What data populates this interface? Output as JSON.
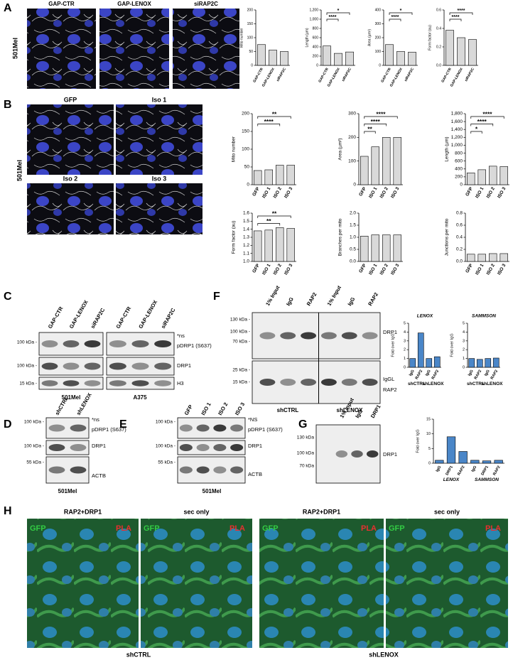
{
  "A": {
    "label": "A",
    "cell_line": "501Mel",
    "images": [
      "GAP-CTR",
      "GAP-LENOX",
      "siRAP2C"
    ],
    "charts": [
      {
        "type": "bar",
        "ylabel": "Mito number",
        "categories": [
          "GAP-CTR",
          "GAP-LENOX",
          "siRAP2C"
        ],
        "values": [
          75,
          55,
          50
        ],
        "ylim": [
          0,
          200
        ],
        "yticks": [
          0,
          50,
          100,
          150,
          200
        ],
        "color": "#d9d9d9",
        "significance": []
      },
      {
        "type": "bar",
        "ylabel": "Length (µm)",
        "categories": [
          "GAP-CTR",
          "GAP-LENOX",
          "siRAP2C"
        ],
        "values": [
          420,
          260,
          290
        ],
        "ylim": [
          0,
          1200
        ],
        "yticks": [
          0,
          200,
          400,
          600,
          800,
          {
            "value": 1000,
            "label": "1,000"
          },
          {
            "value": 1200,
            "label": "1,200"
          }
        ],
        "color": "#d9d9d9",
        "significance": [
          {
            "label": "*",
            "pair": [
              "GAP-CTR",
              "siRAP2C"
            ]
          },
          {
            "label": "****",
            "pair": [
              "GAP-CTR",
              "GAP-LENOX"
            ]
          }
        ]
      },
      {
        "type": "bar",
        "ylabel": "Area (µm²)",
        "categories": [
          "GAP-CTR",
          "GAP-LENOX",
          "siRAP2C"
        ],
        "values": [
          150,
          100,
          95
        ],
        "ylim": [
          0,
          400
        ],
        "yticks": [
          0,
          100,
          200,
          300,
          400
        ],
        "color": "#d9d9d9",
        "significance": [
          {
            "label": "*",
            "pair": [
              "GAP-CTR",
              "siRAP2C"
            ]
          },
          {
            "label": "****",
            "pair": [
              "GAP-CTR",
              "GAP-LENOX"
            ]
          }
        ]
      },
      {
        "type": "bar",
        "ylabel": "Form factor (au)",
        "categories": [
          "GAP-CTR",
          "GAP-LENOX",
          "siRAP2C"
        ],
        "values": [
          0.38,
          0.3,
          0.28
        ],
        "ylim": [
          0,
          0.6
        ],
        "yticks": [
          {
            "value": 0,
            "label": "0.0"
          },
          0.2,
          0.4,
          0.6
        ],
        "color": "#d9d9d9",
        "significance": [
          {
            "label": "****",
            "pair": [
              "GAP-CTR",
              "siRAP2C"
            ]
          },
          {
            "label": "****",
            "pair": [
              "GAP-CTR",
              "GAP-LENOX"
            ]
          }
        ]
      }
    ]
  },
  "B": {
    "label": "B",
    "cell_line": "501Mel",
    "images": [
      "GFP",
      "Iso 1",
      "Iso 2",
      "Iso 3"
    ],
    "charts": [
      {
        "type": "bar",
        "ylabel": "Mito number",
        "categories": [
          "GFP",
          "ISO 1",
          "ISO 2",
          "ISO 3"
        ],
        "values": [
          40,
          42,
          55,
          55
        ],
        "ylim": [
          0,
          200
        ],
        "yticks": [
          0,
          50,
          100,
          150,
          200
        ],
        "color": "#d9d9d9",
        "significance": [
          {
            "label": "**",
            "pair": [
              "GFP",
              "ISO 3"
            ]
          },
          {
            "label": "****",
            "pair": [
              "GFP",
              "ISO 2"
            ]
          }
        ]
      },
      {
        "type": "bar",
        "ylabel": "Area (µm²)",
        "categories": [
          "GFP",
          "ISO 1",
          "ISO 2",
          "ISO 3"
        ],
        "values": [
          120,
          160,
          200,
          200
        ],
        "ylim": [
          0,
          300
        ],
        "yticks": [
          0,
          100,
          200,
          300
        ],
        "color": "#d9d9d9",
        "significance": [
          {
            "label": "****",
            "pair": [
              "GFP",
              "ISO 3"
            ]
          },
          {
            "label": "****",
            "pair": [
              "GFP",
              "ISO 2"
            ]
          },
          {
            "label": "**",
            "pair": [
              "GFP",
              "ISO 1"
            ]
          }
        ]
      },
      {
        "type": "bar",
        "ylabel": "Length (µm)",
        "categories": [
          "GFP",
          "ISO 1",
          "ISO 2",
          "ISO 3"
        ],
        "values": [
          300,
          380,
          470,
          460
        ],
        "ylim": [
          0,
          1800
        ],
        "yticks": [
          0,
          200,
          400,
          600,
          800,
          {
            "value": 1000,
            "label": "1,000"
          },
          {
            "value": 1200,
            "label": "1,200"
          },
          {
            "value": 1400,
            "label": "1,400"
          },
          {
            "value": 1600,
            "label": "1,600"
          },
          {
            "value": 1800,
            "label": "1,800"
          }
        ],
        "color": "#d9d9d9",
        "significance": [
          {
            "label": "****",
            "pair": [
              "GFP",
              "ISO 3"
            ]
          },
          {
            "label": "****",
            "pair": [
              "GFP",
              "ISO 2"
            ]
          },
          {
            "label": "*",
            "pair": [
              "GFP",
              "ISO 1"
            ]
          }
        ]
      },
      {
        "type": "bar",
        "ylabel": "Form factor (au)",
        "categories": [
          "GFP",
          "ISO 1",
          "ISO 2",
          "ISO 3"
        ],
        "values": [
          1.38,
          1.39,
          1.42,
          1.41
        ],
        "ylim": [
          1,
          1.6
        ],
        "yticks": [
          {
            "value": 1,
            "label": "1.0"
          },
          1.1,
          1.2,
          1.3,
          1.4,
          1.5,
          1.6
        ],
        "color": "#d9d9d9",
        "significance": [
          {
            "label": "**",
            "pair": [
              "GFP",
              "ISO 3"
            ]
          },
          {
            "label": "**",
            "pair": [
              "GFP",
              "ISO 2"
            ]
          }
        ]
      },
      {
        "type": "bar",
        "ylabel": "Branches per mito",
        "categories": [
          "GFP",
          "ISO 1",
          "ISO 2",
          "ISO 3"
        ],
        "values": [
          1.05,
          1.1,
          1.1,
          1.1
        ],
        "ylim": [
          0,
          2
        ],
        "yticks": [
          {
            "value": 0,
            "label": "0.0"
          },
          0.5,
          {
            "value": 1,
            "label": "1.0"
          },
          1.5,
          {
            "value": 2,
            "label": "2.0"
          }
        ],
        "color": "#d9d9d9",
        "significance": []
      },
      {
        "type": "bar",
        "ylabel": "Junctions per mito",
        "categories": [
          "GFP",
          "ISO 1",
          "ISO 2",
          "ISO 3"
        ],
        "values": [
          0.12,
          0.12,
          0.13,
          0.13
        ],
        "ylim": [
          0,
          0.8
        ],
        "yticks": [
          {
            "value": 0,
            "label": "0.0"
          },
          0.2,
          0.4,
          0.6,
          0.8
        ],
        "color": "#d9d9d9",
        "significance": []
      }
    ]
  },
  "C": {
    "label": "C",
    "markers": [
      "100 kDa -",
      "100 kDa -",
      "15 kDa -"
    ],
    "bands": [
      "*ns",
      "pDRP1 (S637)",
      "DRP1",
      "H3"
    ],
    "blots": [
      {
        "lanes": [
          "GAP-CTR",
          "GAP-LENOX",
          "siRAP2C"
        ],
        "cell_line": "501Mel"
      },
      {
        "lanes": [
          "GAP-CTR",
          "GAP-LENOX",
          "siRAP2C"
        ],
        "cell_line": "A375"
      }
    ]
  },
  "D": {
    "label": "D",
    "lanes": [
      "shCTRL",
      "shLENOX"
    ],
    "markers": [
      "100 kDa -",
      "100 kDa -",
      "55 kDa -"
    ],
    "bands": [
      "*ns",
      "pDRP1 (S637)",
      "DRP1",
      "ACTB"
    ],
    "cell_line": "501Mel"
  },
  "E": {
    "label": "E",
    "lanes": [
      "GFP",
      "ISO 1",
      "ISO 2",
      "ISO 3"
    ],
    "markers": [
      "100 kDa -",
      "100 kDa -",
      "55 kDa -"
    ],
    "bands": [
      "*NS",
      "pDRP1 (S637)",
      "DRP1",
      "ACTB"
    ],
    "cell_line": "501Mel"
  },
  "F": {
    "label": "F",
    "lanes": [
      "1% Input",
      "IgG",
      "RAP2",
      "1% Input",
      "IgG",
      "RAP2"
    ],
    "markers": [
      "130 kDa -",
      "100 kDa -",
      "70 kDa -",
      "25 kDa -",
      "15 kDa -"
    ],
    "bands": [
      "DRP1",
      "IgGL",
      "RAP2"
    ],
    "groups": [
      "shCTRL",
      "shLENOX"
    ],
    "charts": [
      {
        "type": "bar",
        "title": "LENOX",
        "ylabel": "Fold over IgG",
        "categories": [
          "IgG",
          "RAP2",
          "IgG",
          "RAP2"
        ],
        "groups": [
          "shCTRL",
          "shLENOX"
        ],
        "values": [
          1,
          3.9,
          1,
          1.2
        ],
        "ylim": [
          0,
          5
        ],
        "yticks": [
          0,
          1,
          2,
          3,
          4,
          5
        ],
        "color": "#4a86c8",
        "significance": []
      },
      {
        "type": "bar",
        "title": "SAMMSON",
        "ylabel": "Fold over IgG",
        "categories": [
          "IgG",
          "RAP2",
          "IgG",
          "RAP2"
        ],
        "groups": [
          "shCTRL",
          "shLENOX"
        ],
        "values": [
          1,
          0.9,
          1,
          1.05
        ],
        "ylim": [
          0,
          5
        ],
        "yticks": [
          0,
          1,
          2,
          3,
          4,
          5
        ],
        "color": "#4a86c8",
        "significance": []
      }
    ]
  },
  "G": {
    "label": "G",
    "lanes": [
      "1% Input",
      "IgG",
      "DRP1"
    ],
    "markers": [
      "130 kDa",
      "100 kDa",
      "70 kDa"
    ],
    "bands": [
      "DRP1"
    ],
    "chart": {
      "type": "bar",
      "ylabel": "Fold over IgG",
      "categories": [
        "IgG",
        "DRP1",
        "RAP2",
        "IgG",
        "DRP1",
        "RAP2"
      ],
      "groups": [
        "LENOX",
        "SAMMSON"
      ],
      "values": [
        1,
        9,
        4,
        1,
        0.8,
        1
      ],
      "ylim": [
        0,
        15
      ],
      "yticks": [
        0,
        5,
        10,
        15
      ],
      "color": "#4a86c8",
      "significance": []
    }
  },
  "H": {
    "label": "H",
    "conditions": [
      "RAP2+DRP1",
      "sec only",
      "RAP2+DRP1",
      "sec only"
    ],
    "channels": [
      "GFP",
      "PLA"
    ],
    "groups": [
      "shCTRL",
      "shLENOX"
    ]
  }
}
